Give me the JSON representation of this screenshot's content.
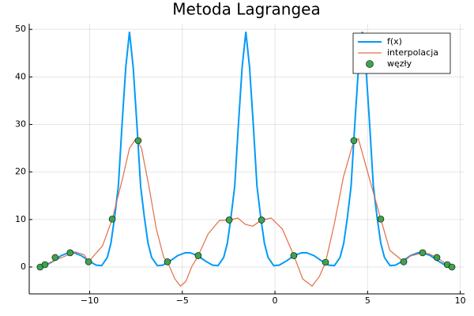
{
  "chart_data": {
    "type": "line",
    "title": "Metoda Lagrangea",
    "xlim": [
      -13.26,
      10.23
    ],
    "ylim": [
      -5.65,
      51.2
    ],
    "xticks": [
      {
        "value": -10,
        "label": "−10"
      },
      {
        "value": -5,
        "label": "−5"
      },
      0,
      5,
      10
    ],
    "yticks": [
      0,
      10,
      20,
      30,
      40,
      50
    ],
    "grid": true,
    "legend": "top-right",
    "series": [
      {
        "name": "f(x)",
        "color": "#009af9",
        "kind": "line",
        "x": [
          -12.67,
          -12.34,
          -11.94,
          -11.54,
          -11.14,
          -10.85,
          -10.45,
          -10.05,
          -9.65,
          -9.35,
          -9.05,
          -8.85,
          -8.65,
          -8.45,
          -8.25,
          -8.05,
          -7.85,
          -7.65,
          -7.45,
          -7.25,
          -7.05,
          -6.85,
          -6.65,
          -6.35,
          -6.05,
          -5.65,
          -5.25,
          -4.85,
          -4.57,
          -4.17,
          -3.77,
          -3.37,
          -3.07,
          -2.77,
          -2.57,
          -2.37,
          -2.17,
          -1.97,
          -1.77,
          -1.57,
          -1.37,
          -1.17,
          -0.97,
          -0.77,
          -0.57,
          -0.37,
          -0.07,
          0.23,
          0.63,
          1.03,
          1.43,
          1.71,
          2.11,
          2.51,
          2.91,
          3.21,
          3.51,
          3.71,
          3.91,
          4.11,
          4.31,
          4.51,
          4.71,
          4.91,
          5.11,
          5.31,
          5.51,
          5.71,
          5.91,
          6.21,
          6.51,
          6.91,
          7.31,
          7.71,
          7.99,
          8.39,
          8.79,
          9.19,
          9.55
        ],
        "values": [
          0.2,
          0.4,
          1.3,
          2.4,
          3.0,
          3.0,
          2.4,
          1.3,
          0.4,
          0.3,
          2,
          5,
          10.5,
          17,
          30,
          42,
          49.5,
          42,
          30,
          17,
          10.5,
          5,
          2,
          0.3,
          0.4,
          1.3,
          2.4,
          3.0,
          3.0,
          2.4,
          1.3,
          0.4,
          0.3,
          2,
          5,
          10.5,
          17,
          30,
          42,
          49.5,
          42,
          30,
          17,
          10.5,
          5,
          2,
          0.3,
          0.4,
          1.3,
          2.4,
          3.0,
          3.0,
          2.4,
          1.3,
          0.4,
          0.3,
          2,
          5,
          10.5,
          17,
          30,
          42,
          49.5,
          42,
          30,
          17,
          10.5,
          5,
          2,
          0.3,
          0.4,
          1.3,
          2.4,
          3.0,
          3.0,
          2.4,
          1.3,
          0.4,
          0.2
        ]
      },
      {
        "name": "interpolacja",
        "color": "#e26f46",
        "kind": "line",
        "x": [
          -12.67,
          -12.0,
          -11.2,
          -10.8,
          -10.3,
          -10.06,
          -9.3,
          -8.78,
          -8.2,
          -7.85,
          -7.5,
          -7.2,
          -6.8,
          -6.4,
          -6.0,
          -5.8,
          -5.4,
          -5.1,
          -4.8,
          -4.5,
          -4.14,
          -3.6,
          -3.0,
          -2.47,
          -2.0,
          -1.6,
          -1.2,
          -0.72,
          -0.2,
          0.4,
          1.02,
          1.5,
          2.0,
          2.4,
          2.73,
          3.2,
          3.7,
          4.26,
          4.5,
          5.0,
          5.71,
          6.2,
          6.95,
          7.3,
          7.97,
          8.3,
          8.74,
          9.3,
          9.55
        ],
        "values": [
          0,
          1.2,
          2.5,
          3.2,
          2.6,
          1.1,
          4.5,
          10.1,
          19,
          25,
          27,
          25,
          17,
          8,
          2,
          1.1,
          -2.5,
          -4,
          -3,
          0,
          2.4,
          7,
          9.8,
          9.9,
          10.3,
          9,
          8.6,
          9.9,
          10.3,
          8,
          2.4,
          -2.5,
          -4,
          -2,
          1.0,
          9,
          19,
          26.6,
          27,
          20,
          10.1,
          3.5,
          1.1,
          2.3,
          3.0,
          2.8,
          2.0,
          0.5,
          0
        ]
      },
      {
        "name": "węzły",
        "color": "#3da44d",
        "kind": "scatter",
        "x": [
          -12.67,
          -12.41,
          -11.86,
          -11.05,
          -10.06,
          -8.78,
          -7.38,
          -5.8,
          -4.14,
          -2.47,
          -0.72,
          1.02,
          2.73,
          4.26,
          5.71,
          6.95,
          7.97,
          8.74,
          9.3,
          9.55
        ],
        "values": [
          0,
          0.5,
          2.0,
          3.0,
          1.1,
          10.1,
          26.6,
          1.1,
          2.4,
          9.9,
          9.9,
          2.4,
          1.0,
          26.6,
          10.1,
          1.1,
          3.0,
          2.0,
          0.5,
          0
        ]
      }
    ]
  }
}
